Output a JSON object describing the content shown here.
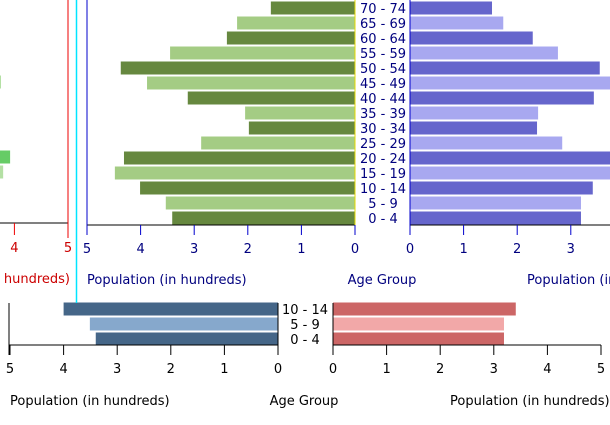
{
  "chart_data": [
    {
      "type": "bar",
      "orientation": "horizontal-pyramid",
      "categories": [
        "0 - 4",
        "5 - 9",
        "10 - 14",
        "15 - 19",
        "20 - 24",
        "25 - 29",
        "30 - 34",
        "35 - 39",
        "40 - 44",
        "45 - 49",
        "50 - 54",
        "55 - 59",
        "60 - 64",
        "65 - 69",
        "70 - 74"
      ],
      "series": [
        {
          "side": "left",
          "values": [
            3.41,
            3.53,
            4.01,
            4.48,
            4.31,
            2.87,
            1.98,
            2.05,
            3.12,
            3.88,
            4.37,
            3.45,
            2.39,
            2.2,
            1.57
          ]
        },
        {
          "side": "right",
          "values": [
            3.19,
            3.19,
            3.41,
            3.79,
            3.92,
            2.84,
            2.37,
            2.39,
            3.43,
            3.75,
            3.54,
            2.76,
            2.29,
            1.74,
            1.53
          ]
        }
      ],
      "xlabel_left": "Population (in hundreds)",
      "xlabel_center": "Age Group",
      "xlabel_right": "Population (in hundreds)",
      "xlim": [
        0,
        5
      ],
      "ticks": [
        "0",
        "1",
        "2",
        "3",
        "4",
        "5"
      ],
      "colors": {
        "left_dark": "#66883f",
        "left_light": "#a4cc84",
        "right_dark": "#6666cc",
        "right_light": "#a8a8f0",
        "text": "#00007f"
      }
    },
    {
      "type": "bar",
      "orientation": "horizontal-pyramid",
      "categories": [
        "0 - 4",
        "5 - 9",
        "10 - 14"
      ],
      "series": [
        {
          "side": "left",
          "values": [
            3.4,
            3.51,
            4.0
          ]
        },
        {
          "side": "right",
          "values": [
            3.19,
            3.19,
            3.41
          ]
        }
      ],
      "xlabel_left": "Population (in hundreds)",
      "xlabel_center": "Age Group",
      "xlabel_right": "Population (in hundreds)",
      "xlim": [
        0,
        5
      ],
      "ticks": [
        "0",
        "1",
        "2",
        "3",
        "4",
        "5"
      ],
      "colors": {
        "left_dark": "#456688",
        "left_light": "#86a8cc",
        "right_dark": "#cc6666",
        "right_light": "#f2a8a8",
        "text": "#000000"
      }
    },
    {
      "type": "bar",
      "orientation": "horizontal",
      "categories": [
        "15 - 19",
        "20 - 24",
        "45 - 49"
      ],
      "values": [
        3.79,
        3.92,
        3.75
      ],
      "xlabel": "n hundreds)",
      "ticks": [
        "4",
        "5"
      ],
      "colors": {
        "dark": "#66cc66",
        "light": "#b4e0a4",
        "text": "#cc0000"
      }
    }
  ]
}
